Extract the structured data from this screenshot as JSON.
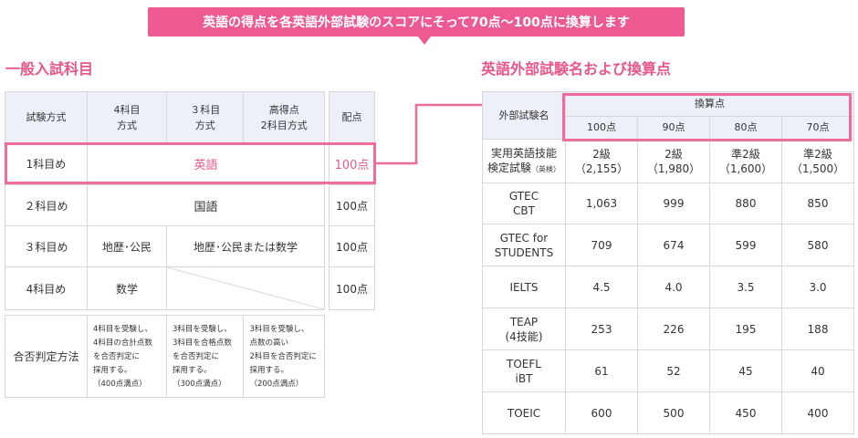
{
  "banner": {
    "text": "英語の得点を各英語外部試験のスコアにそって70点〜100点に換算します"
  },
  "left": {
    "heading": "一般入試科目",
    "headers": [
      "試験方式",
      "4科目\n方式",
      "３科目\n方式",
      "高得点\n2科目方式",
      "配点"
    ],
    "rows": [
      {
        "label": "1科目め",
        "subject": "英語",
        "points": "100点"
      },
      {
        "label": "２科目め",
        "subject": "国語",
        "points": "100点"
      },
      {
        "label": "３科目め",
        "col4": "地歴･公民",
        "col3plus": "地歴･公民または数学",
        "points": "100点"
      },
      {
        "label": "4科目め",
        "col4": "数学",
        "points": "100点"
      }
    ],
    "judge": {
      "label": "合否判定方法",
      "four": "4科目を受験し、\n4科目の合計点数\nを合否判定に\n採用する。\n（400点満点）",
      "three": "3科目を受験し、\n3科目を合格点数\nを合否判定に\n採用する。\n（300点満点）",
      "two": "3科目を受験し、\n点数の高い\n2科目を合否判定に\n採用する。\n（200点満点）"
    }
  },
  "right": {
    "heading": "英語外部試験名および換算点",
    "exam_header": "外部試験名",
    "conv_header": "換算点",
    "point_cols": [
      "100点",
      "90点",
      "80点",
      "70点"
    ],
    "rows": [
      {
        "exam": "実用英語技能\n検定試験",
        "exam_note": "（英検）",
        "vals": [
          "2級\n（2,155）",
          "2級\n（1,980）",
          "準2級\n（1,600）",
          "準2級\n（1,500）"
        ]
      },
      {
        "exam": "GTEC\nCBT",
        "vals": [
          "1,063",
          "999",
          "880",
          "850"
        ]
      },
      {
        "exam": "GTEC for\nSTUDENTS",
        "vals": [
          "709",
          "674",
          "599",
          "580"
        ]
      },
      {
        "exam": "IELTS",
        "vals": [
          "4.5",
          "4.0",
          "3.5",
          "3.0"
        ]
      },
      {
        "exam": "TEAP\n(4技能)",
        "vals": [
          "253",
          "226",
          "195",
          "188"
        ]
      },
      {
        "exam": "TOEFL\niBT",
        "vals": [
          "61",
          "52",
          "45",
          "40"
        ]
      },
      {
        "exam": "TOEIC",
        "vals": [
          "600",
          "500",
          "450",
          "400"
        ]
      }
    ]
  },
  "colors": {
    "accent": "#ec5a91",
    "header_bg": "#eef0f8",
    "border": "#d8d8d8"
  }
}
